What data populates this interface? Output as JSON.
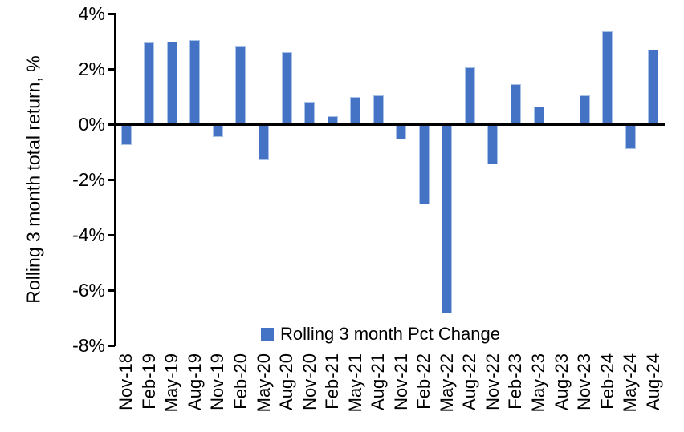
{
  "chart_data": {
    "type": "bar",
    "title": "",
    "xlabel": "",
    "ylabel": "Rolling 3 month total return, %",
    "legend": [
      "Rolling 3 month Pct Change"
    ],
    "legend_position": "bottom-center-inside",
    "categories": [
      "Nov-18",
      "Feb-19",
      "May-19",
      "Aug-19",
      "Nov-19",
      "Feb-20",
      "May-20",
      "Aug-20",
      "Nov-20",
      "Feb-21",
      "May-21",
      "Aug-21",
      "Nov-21",
      "Feb-22",
      "May-22",
      "Aug-22",
      "Nov-22",
      "Feb-23",
      "May-23",
      "Aug-23",
      "Nov-23",
      "Feb-24",
      "May-24",
      "Aug-24"
    ],
    "values": [
      -0.75,
      2.95,
      3.0,
      3.05,
      -0.45,
      2.8,
      -1.3,
      2.6,
      0.8,
      0.3,
      1.0,
      1.05,
      -0.55,
      -2.9,
      -6.85,
      2.05,
      -1.45,
      1.45,
      0.65,
      0.0,
      1.05,
      3.35,
      -0.9,
      2.7
    ],
    "ylim": [
      -8,
      4
    ],
    "y_ticks": [
      4,
      2,
      0,
      -2,
      -4,
      -6,
      -8
    ],
    "y_tick_labels": [
      "4%",
      "2%",
      "0%",
      "-2%",
      "-4%",
      "-6%",
      "-8%"
    ],
    "grid": false,
    "colors": {
      "bar_fill": "#4472C4",
      "bar_border": "#A9C2E8",
      "axis": "#000000",
      "text": "#000000",
      "background": "#FFFFFF"
    }
  }
}
